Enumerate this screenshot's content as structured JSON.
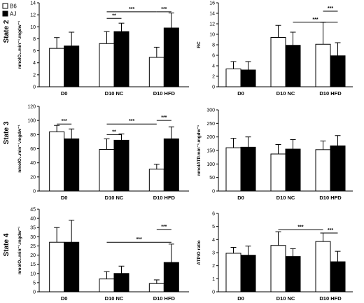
{
  "legend": [
    {
      "name": "B6",
      "color": "#ffffff"
    },
    {
      "name": "AJ",
      "color": "#000000"
    }
  ],
  "row_labels": [
    "State 2",
    "State 3",
    "State 4"
  ],
  "chart_data": [
    {
      "type": "bar",
      "categories": [
        "D0",
        "D10 NC",
        "D10 HFD"
      ],
      "ylabel": "nmolO₂.min⁻¹.mgdw⁻¹",
      "ylim": [
        0,
        14
      ],
      "yticks": [
        0,
        2,
        4,
        6,
        8,
        10,
        12,
        14
      ],
      "series": [
        {
          "name": "B6",
          "values": [
            6.4,
            7.2,
            4.9
          ],
          "errors": [
            1.8,
            2.0,
            1.7
          ]
        },
        {
          "name": "AJ",
          "values": [
            6.8,
            9.2,
            9.8
          ],
          "errors": [
            2.3,
            1.4,
            2.5
          ]
        }
      ],
      "annotations": [
        {
          "text": "**",
          "from": "D10 NC B6",
          "to": "D10 NC AJ",
          "y": 11.4
        },
        {
          "text": "***",
          "from": "D10 NC B6",
          "to": "D10 HFD B6",
          "y": 12.5
        },
        {
          "text": "***",
          "from": "D10 HFD B6",
          "to": "D10 HFD AJ",
          "y": 12.5
        }
      ]
    },
    {
      "type": "bar",
      "categories": [
        "D0",
        "D10 NC",
        "D10 HFD"
      ],
      "ylabel": "RC",
      "ylim": [
        0,
        16
      ],
      "yticks": [
        0,
        2,
        4,
        6,
        8,
        10,
        12,
        14,
        16
      ],
      "series": [
        {
          "name": "B6",
          "values": [
            3.4,
            9.4,
            8.1
          ],
          "errors": [
            1.4,
            2.3,
            4.2
          ]
        },
        {
          "name": "AJ",
          "values": [
            3.2,
            7.9,
            5.9
          ],
          "errors": [
            1.6,
            2.5,
            2.5
          ]
        }
      ],
      "annotations": [
        {
          "text": "***",
          "from": "D10 NC AJ",
          "to": "D10 HFD AJ",
          "y": 12.3
        },
        {
          "text": "***",
          "from": "D10 HFD B6",
          "to": "D10 HFD AJ",
          "y": 14.4
        }
      ]
    },
    {
      "type": "bar",
      "categories": [
        "D0",
        "D10 NC",
        "D10 HFD"
      ],
      "ylabel": "nmolO₂.min⁻¹.mgdw⁻¹",
      "ylim": [
        0,
        120
      ],
      "yticks": [
        0,
        20,
        40,
        60,
        80,
        100,
        120
      ],
      "series": [
        {
          "name": "B6",
          "values": [
            84,
            59,
            31
          ],
          "errors": [
            9,
            15,
            7
          ]
        },
        {
          "name": "AJ",
          "values": [
            74,
            72,
            74
          ],
          "errors": [
            14,
            9,
            17
          ]
        }
      ],
      "annotations": [
        {
          "text": "***",
          "from": "D0 B6",
          "to": "D0 AJ",
          "y": 95
        },
        {
          "text": "**",
          "from": "D10 NC B6",
          "to": "D10 NC AJ",
          "y": 80
        },
        {
          "text": "***",
          "from": "D10 NC B6",
          "to": "D10 HFD B6",
          "y": 95
        },
        {
          "text": "***",
          "from": "D10 HFD B6",
          "to": "D10 HFD AJ",
          "y": 100
        }
      ]
    },
    {
      "type": "bar",
      "categories": [
        "D0",
        "D10 NC",
        "D10 HFD"
      ],
      "ylabel": "nmolATP.min⁻¹.mgdw⁻¹",
      "ylim": [
        0,
        300
      ],
      "yticks": [
        0,
        50,
        100,
        150,
        200,
        250,
        300
      ],
      "series": [
        {
          "name": "B6",
          "values": [
            160,
            137,
            153
          ],
          "errors": [
            35,
            35,
            32
          ]
        },
        {
          "name": "AJ",
          "values": [
            162,
            155,
            167
          ],
          "errors": [
            38,
            35,
            38
          ]
        }
      ],
      "annotations": []
    },
    {
      "type": "bar",
      "categories": [
        "D0",
        "D10 NC",
        "D10 HFD"
      ],
      "ylabel": "nmolO₂.min⁻¹.mgdw⁻¹",
      "ylim": [
        0,
        45
      ],
      "yticks": [
        0,
        5,
        10,
        15,
        20,
        25,
        30,
        35,
        40,
        45
      ],
      "series": [
        {
          "name": "B6",
          "values": [
            27,
            7,
            4.5
          ],
          "errors": [
            8,
            4,
            2
          ]
        },
        {
          "name": "AJ",
          "values": [
            27,
            10,
            16
          ],
          "errors": [
            12,
            4,
            10
          ]
        }
      ],
      "annotations": [
        {
          "text": "***",
          "from": "D10 NC B6",
          "to": "D10 HFD AJ",
          "y": 27
        },
        {
          "text": "***",
          "from": "D10 HFD B6",
          "to": "D10 HFD AJ",
          "y": 34
        }
      ]
    },
    {
      "type": "bar",
      "categories": [
        "D0",
        "D10 NC",
        "D10 HFD"
      ],
      "ylabel": "ATP/O ratio",
      "ylim": [
        0,
        6
      ],
      "yticks": [
        0,
        1,
        2,
        3,
        4,
        5,
        6
      ],
      "series": [
        {
          "name": "B6",
          "values": [
            2.95,
            3.55,
            3.85
          ],
          "errors": [
            0.45,
            1.05,
            0.65
          ]
        },
        {
          "name": "AJ",
          "values": [
            2.8,
            2.7,
            2.3
          ],
          "errors": [
            0.7,
            0.6,
            0.8
          ]
        }
      ],
      "annotations": [
        {
          "text": "***",
          "from": "D10 NC B6",
          "to": "D10 HFD B6",
          "y": 4.75
        },
        {
          "text": "***",
          "from": "D10 HFD B6",
          "to": "D10 HFD AJ",
          "y": 4.5
        }
      ]
    }
  ]
}
